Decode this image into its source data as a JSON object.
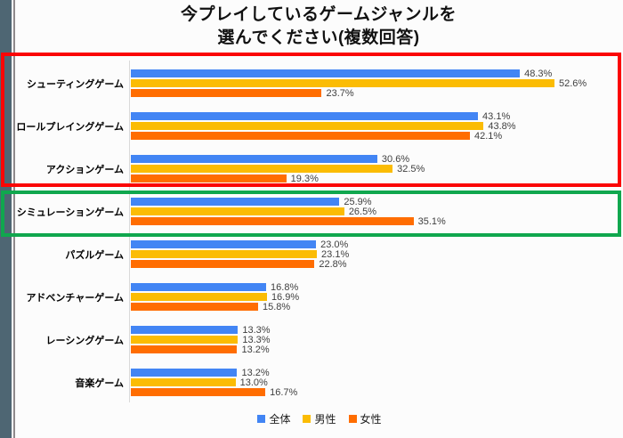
{
  "window": {
    "edge_strip_color": "#4e6673",
    "edge_line_color": "#8f8a8c"
  },
  "title": {
    "line1": "今プレイしているゲームジャンルを",
    "line2": "選んでください(複数回答)"
  },
  "legend": {
    "items": [
      {
        "label": "全体",
        "color": "#4285f4"
      },
      {
        "label": "男性",
        "color": "#fbbc04"
      },
      {
        "label": "女性",
        "color": "#ff6d01"
      }
    ]
  },
  "chart_data": {
    "type": "bar",
    "orientation": "horizontal",
    "title": "今プレイしているゲームジャンルを選んでください(複数回答)",
    "categories": [
      "シューティングゲーム",
      "ロールプレイングゲーム",
      "アクションゲーム",
      "シミュレーションゲーム",
      "パズルゲーム",
      "アドベンチャーゲーム",
      "レーシングゲーム",
      "音楽ゲーム"
    ],
    "series": [
      {
        "name": "全体",
        "color": "#4285f4",
        "values": [
          48.3,
          43.1,
          30.6,
          25.9,
          23.0,
          16.8,
          13.3,
          13.2
        ]
      },
      {
        "name": "男性",
        "color": "#fbbc04",
        "values": [
          52.6,
          43.8,
          32.5,
          26.5,
          23.1,
          16.9,
          13.3,
          13.0
        ]
      },
      {
        "name": "女性",
        "color": "#ff6d01",
        "values": [
          23.7,
          42.1,
          19.3,
          35.1,
          22.8,
          15.8,
          13.2,
          16.7
        ]
      }
    ],
    "value_suffix": "%",
    "xlim": [
      0,
      60
    ],
    "grid": false,
    "legend_position": "bottom",
    "annotations": {
      "red_box": {
        "color": "#fb0505",
        "categories": [
          "シューティングゲーム",
          "ロールプレイングゲーム",
          "アクションゲーム"
        ]
      },
      "green_box": {
        "color": "#10a74e",
        "categories": [
          "シミュレーションゲーム"
        ]
      }
    }
  }
}
